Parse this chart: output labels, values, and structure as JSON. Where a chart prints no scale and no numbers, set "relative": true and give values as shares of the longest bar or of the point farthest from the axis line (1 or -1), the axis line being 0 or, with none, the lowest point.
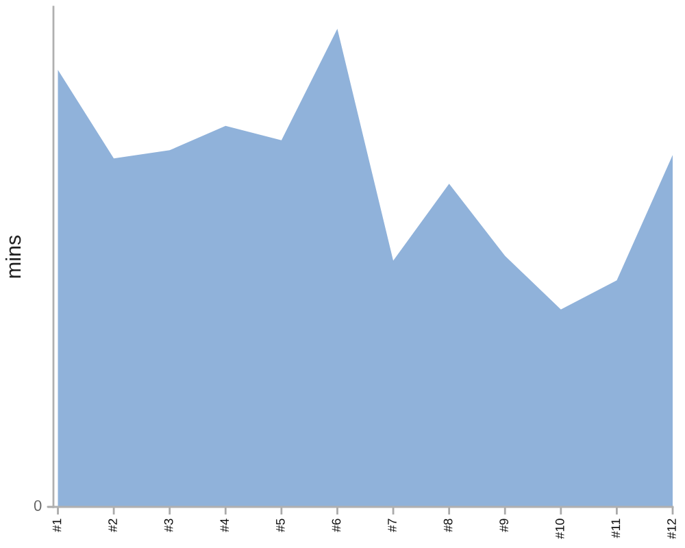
{
  "chart_data": {
    "type": "area",
    "ylabel": "mins",
    "relative": true,
    "annotations": [
      "0"
    ],
    "categories": [
      "#1",
      "#2",
      "#3",
      "#4",
      "#5",
      "#6",
      "#7",
      "#8",
      "#9",
      "#10",
      "#11",
      "#12"
    ],
    "series": [
      {
        "color": "#90b2da",
        "values": [
          0.914,
          0.729,
          0.746,
          0.797,
          0.767,
          1,
          0.515,
          0.676,
          0.525,
          0.413,
          0.474,
          0.736
        ]
      }
    ]
  }
}
